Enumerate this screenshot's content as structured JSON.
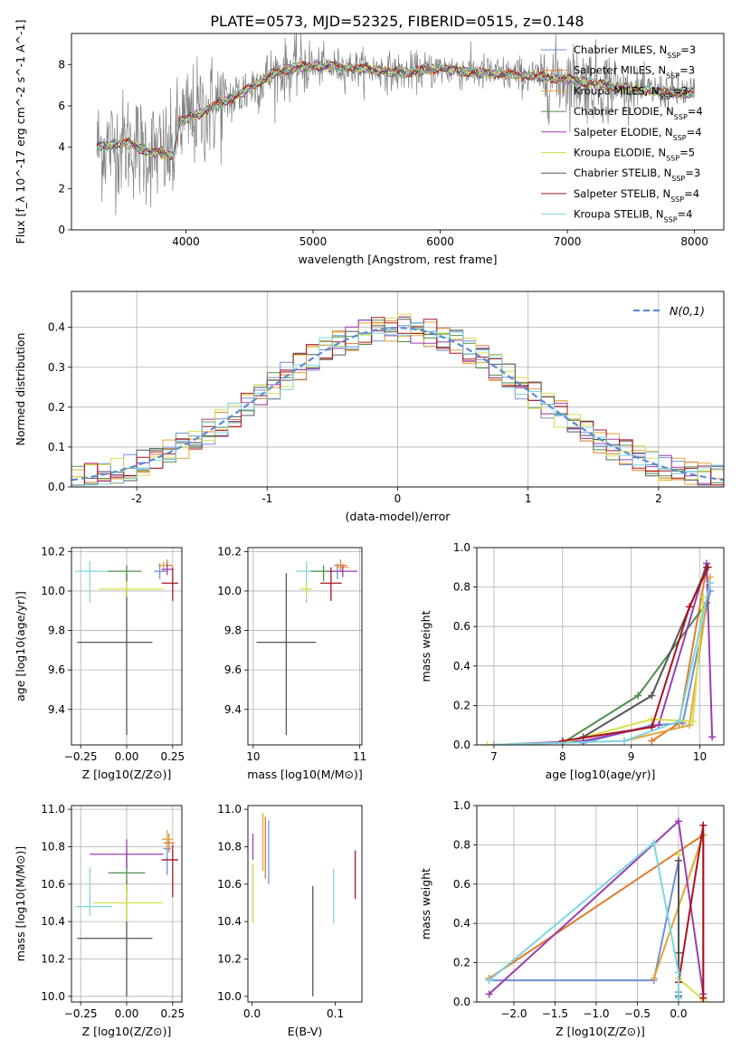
{
  "figure": {
    "title": "PLATE=0573, MJD=52325, FIBERID=0515, z=0.148"
  },
  "legend_series": [
    {
      "name": "Chabrier MILES",
      "nssp": "3",
      "color": "#6f8fd8"
    },
    {
      "name": "Salpeter MILES",
      "nssp": "3",
      "color": "#e07b2a"
    },
    {
      "name": "Kroupa MILES",
      "nssp": "3",
      "color": "#e3a43a"
    },
    {
      "name": "Chabrier ELODIE",
      "nssp": "4",
      "color": "#4f8f4f"
    },
    {
      "name": "Salpeter ELODIE",
      "nssp": "4",
      "color": "#9a3fb0"
    },
    {
      "name": "Kroupa ELODIE",
      "nssp": "5",
      "color": "#d8e04a"
    },
    {
      "name": "Chabrier STELIB",
      "nssp": "3",
      "color": "#555555"
    },
    {
      "name": "Salpeter STELIB",
      "nssp": "4",
      "color": "#a8141e"
    },
    {
      "name": "Kroupa STELIB",
      "nssp": "4",
      "color": "#7dd6e0"
    }
  ],
  "chart_data": [
    {
      "id": "spectrum",
      "type": "line",
      "xlabel": "wavelength [Angstrom, rest frame]",
      "ylabel": "Flux [f_λ 10^-17 erg cm^-2 s^-1 A^-1]",
      "xlim": [
        3100,
        8230
      ],
      "ylim": [
        0,
        9.5
      ],
      "xticks": [
        4000,
        5000,
        6000,
        7000,
        8000
      ],
      "yticks": [
        0,
        2,
        4,
        6,
        8
      ],
      "grid": false,
      "legend_placement": "right",
      "data_x_range": [
        3300,
        8000
      ],
      "data_color": "#808080",
      "continuum_points": [
        [
          3300,
          4.0
        ],
        [
          3550,
          4.2
        ],
        [
          3700,
          3.8
        ],
        [
          3900,
          3.6
        ],
        [
          3950,
          5.2
        ],
        [
          4100,
          5.6
        ],
        [
          4400,
          6.5
        ],
        [
          4700,
          7.6
        ],
        [
          4900,
          7.9
        ],
        [
          5100,
          7.9
        ],
        [
          5400,
          7.8
        ],
        [
          5700,
          7.6
        ],
        [
          6000,
          7.8
        ],
        [
          6300,
          7.6
        ],
        [
          6600,
          7.5
        ],
        [
          7000,
          7.3
        ],
        [
          7400,
          6.9
        ],
        [
          7700,
          6.7
        ],
        [
          8000,
          6.6
        ]
      ]
    },
    {
      "id": "residual-hist",
      "type": "histogram",
      "xlabel": "(data-model)/error",
      "ylabel": "Normed distribution",
      "xlim": [
        -2.5,
        2.5
      ],
      "ylim": [
        0,
        0.49
      ],
      "xticks": [
        -2,
        -1,
        0,
        1,
        2
      ],
      "yticks": [
        0,
        0.1,
        0.2,
        0.3,
        0.4
      ],
      "grid": true,
      "legend_placement": "top-right",
      "reference_curve": {
        "name": "N(0,1)",
        "color": "#5b8bd0",
        "style": "dashed"
      },
      "bins": 50
    },
    {
      "id": "z-age",
      "type": "scatter",
      "xlabel": "Z [log10(Z/Z⊙)]",
      "ylabel": "age [log10(age/yr)]",
      "xlim": [
        -0.3,
        0.3
      ],
      "ylim": [
        9.22,
        10.22
      ],
      "xticks": [
        -0.25,
        0.0,
        0.25
      ],
      "yticks": [
        9.4,
        9.6,
        9.8,
        10.0,
        10.2
      ],
      "grid": true,
      "points": [
        {
          "series": 6,
          "x": 0.0,
          "y": 9.74,
          "xerr": [
            0.27,
            0.14
          ],
          "yerr": [
            0.47,
            0.35
          ]
        },
        {
          "series": 8,
          "x": -0.2,
          "y": 10.1,
          "xerr": [
            0.08,
            0.12
          ],
          "yerr": [
            0.16,
            0.05
          ]
        },
        {
          "series": 3,
          "x": 0.0,
          "y": 10.1,
          "xerr": [
            0.1,
            0.08
          ],
          "yerr": [
            0.05,
            0.03
          ]
        },
        {
          "series": 5,
          "x": 0.0,
          "y": 10.01,
          "xerr": [
            0.15,
            0.2
          ],
          "yerr": [
            0.04,
            0.04
          ]
        },
        {
          "series": 0,
          "x": 0.18,
          "y": 10.1,
          "xerr": [
            0.03,
            0.04
          ],
          "yerr": [
            0.04,
            0.04
          ]
        },
        {
          "series": 1,
          "x": 0.22,
          "y": 10.13,
          "xerr": [
            0.03,
            0.03
          ],
          "yerr": [
            0.03,
            0.03
          ]
        },
        {
          "series": 2,
          "x": 0.2,
          "y": 10.13,
          "xerr": [
            0.03,
            0.03
          ],
          "yerr": [
            0.03,
            0.02
          ]
        },
        {
          "series": 4,
          "x": 0.22,
          "y": 10.11,
          "xerr": [
            0.03,
            0.03
          ],
          "yerr": [
            0.03,
            0.03
          ]
        },
        {
          "series": 7,
          "x": 0.25,
          "y": 10.04,
          "xerr": [
            0.06,
            0.03
          ],
          "yerr": [
            0.09,
            0.08
          ]
        }
      ]
    },
    {
      "id": "mass-age",
      "type": "scatter",
      "xlabel": "mass [log10(M/M⊙)]",
      "ylabel": "",
      "xlim": [
        9.95,
        11.02
      ],
      "ylim": [
        9.22,
        10.22
      ],
      "xticks": [
        10,
        11
      ],
      "yticks": [
        9.4,
        9.6,
        9.8,
        10.0,
        10.2
      ],
      "grid": true,
      "points": [
        {
          "series": 6,
          "x": 10.31,
          "y": 9.74,
          "xerr": [
            0.28,
            0.28
          ],
          "yerr": [
            0.47,
            0.35
          ]
        },
        {
          "series": 8,
          "x": 10.5,
          "y": 10.1,
          "xerr": [
            0.1,
            0.2
          ],
          "yerr": [
            0.16,
            0.05
          ]
        },
        {
          "series": 3,
          "x": 10.66,
          "y": 10.1,
          "xerr": [
            0.12,
            0.1
          ],
          "yerr": [
            0.05,
            0.03
          ]
        },
        {
          "series": 5,
          "x": 10.5,
          "y": 10.01,
          "xerr": [
            0.06,
            0.05
          ],
          "yerr": [
            0.04,
            0.04
          ]
        },
        {
          "series": 0,
          "x": 10.79,
          "y": 10.1,
          "xerr": [
            0.06,
            0.06
          ],
          "yerr": [
            0.04,
            0.04
          ]
        },
        {
          "series": 1,
          "x": 10.82,
          "y": 10.13,
          "xerr": [
            0.06,
            0.06
          ],
          "yerr": [
            0.03,
            0.03
          ]
        },
        {
          "series": 2,
          "x": 10.84,
          "y": 10.12,
          "xerr": [
            0.06,
            0.06
          ],
          "yerr": [
            0.03,
            0.02
          ]
        },
        {
          "series": 4,
          "x": 10.84,
          "y": 10.1,
          "xerr": [
            0.14,
            0.14
          ],
          "yerr": [
            0.03,
            0.03
          ]
        },
        {
          "series": 7,
          "x": 10.73,
          "y": 10.04,
          "xerr": [
            0.1,
            0.1
          ],
          "yerr": [
            0.09,
            0.08
          ]
        }
      ]
    },
    {
      "id": "age-weight",
      "type": "line",
      "xlabel": "age [log10(age/yr)]",
      "ylabel": "mass weight",
      "xlim": [
        6.75,
        10.35
      ],
      "ylim": [
        0,
        1.0
      ],
      "xticks": [
        7,
        8,
        9,
        10
      ],
      "yticks": [
        0.0,
        0.2,
        0.4,
        0.6,
        0.8,
        1.0
      ],
      "grid": true,
      "series": [
        {
          "series": 0,
          "points": [
            [
              8.3,
              0.01
            ],
            [
              9.3,
              0.1
            ],
            [
              9.75,
              0.11
            ],
            [
              10.15,
              0.78
            ]
          ]
        },
        {
          "series": 1,
          "points": [
            [
              9.3,
              0.02
            ],
            [
              9.7,
              0.11
            ],
            [
              10.1,
              0.9
            ]
          ]
        },
        {
          "series": 2,
          "points": [
            [
              8.9,
              0.02
            ],
            [
              9.85,
              0.1
            ],
            [
              10.15,
              0.85
            ]
          ]
        },
        {
          "series": 3,
          "points": [
            [
              8.0,
              0.01
            ],
            [
              9.1,
              0.25
            ],
            [
              10.1,
              0.72
            ]
          ]
        },
        {
          "series": 4,
          "points": [
            [
              7.0,
              0.0
            ],
            [
              8.3,
              0.02
            ],
            [
              9.4,
              0.1
            ],
            [
              10.1,
              0.92
            ],
            [
              10.18,
              0.04
            ]
          ]
        },
        {
          "series": 5,
          "points": [
            [
              6.9,
              0.0
            ],
            [
              8.0,
              0.01
            ],
            [
              9.3,
              0.13
            ],
            [
              9.9,
              0.12
            ],
            [
              10.05,
              0.75
            ]
          ]
        },
        {
          "series": 6,
          "points": [
            [
              8.3,
              0.04
            ],
            [
              9.3,
              0.25
            ],
            [
              10.1,
              0.9
            ]
          ]
        },
        {
          "series": 7,
          "points": [
            [
              8.0,
              0.02
            ],
            [
              9.3,
              0.09
            ],
            [
              9.85,
              0.7
            ],
            [
              10.12,
              0.9
            ]
          ]
        },
        {
          "series": 8,
          "points": [
            [
              7.0,
              0.0
            ],
            [
              8.9,
              0.02
            ],
            [
              9.7,
              0.12
            ],
            [
              10.15,
              0.82
            ]
          ]
        }
      ]
    },
    {
      "id": "z-mass",
      "type": "scatter",
      "xlabel": "Z [log10(Z/Z⊙)]",
      "ylabel": "mass [log10(M/M⊙)]",
      "xlim": [
        -0.3,
        0.3
      ],
      "ylim": [
        9.97,
        11.02
      ],
      "xticks": [
        -0.25,
        0.0,
        0.25
      ],
      "yticks": [
        10.0,
        10.2,
        10.4,
        10.6,
        10.8,
        11.0
      ],
      "grid": true,
      "points": [
        {
          "series": 6,
          "x": 0.0,
          "y": 10.31,
          "xerr": [
            0.27,
            0.14
          ],
          "yerr": [
            0.31,
            0.31
          ]
        },
        {
          "series": 8,
          "x": -0.2,
          "y": 10.48,
          "xerr": [
            0.08,
            0.12
          ],
          "yerr": [
            0.05,
            0.21
          ]
        },
        {
          "series": 3,
          "x": 0.0,
          "y": 10.66,
          "xerr": [
            0.1,
            0.1
          ],
          "yerr": [
            0.1,
            0.12
          ]
        },
        {
          "series": 5,
          "x": 0.0,
          "y": 10.5,
          "xerr": [
            0.18,
            0.2
          ],
          "yerr": [
            0.1,
            0.1
          ]
        },
        {
          "series": 0,
          "x": 0.22,
          "y": 10.79,
          "xerr": [
            0.02,
            0.02
          ],
          "yerr": [
            0.14,
            0.05
          ]
        },
        {
          "series": 1,
          "x": 0.23,
          "y": 10.82,
          "xerr": [
            0.03,
            0.03
          ],
          "yerr": [
            0.05,
            0.05
          ]
        },
        {
          "series": 2,
          "x": 0.22,
          "y": 10.84,
          "xerr": [
            0.03,
            0.03
          ],
          "yerr": [
            0.05,
            0.05
          ]
        },
        {
          "series": 4,
          "x": 0.0,
          "y": 10.76,
          "xerr": [
            0.2,
            0.2
          ],
          "yerr": [
            0.08,
            0.08
          ]
        },
        {
          "series": 7,
          "x": 0.25,
          "y": 10.73,
          "xerr": [
            0.06,
            0.03
          ],
          "yerr": [
            0.2,
            0.08
          ]
        }
      ]
    },
    {
      "id": "ebv-mass",
      "type": "scatter",
      "xlabel": "E(B-V)",
      "ylabel": "",
      "xlim": [
        -0.005,
        0.132
      ],
      "ylim": [
        9.97,
        11.02
      ],
      "xticks": [
        0.0,
        0.1
      ],
      "yticks": [
        10.0,
        10.2,
        10.4,
        10.6,
        10.8,
        11.0
      ],
      "grid": false,
      "points": [
        {
          "series": 6,
          "x": 0.073,
          "y": 10.31,
          "xerr": [
            0,
            0
          ],
          "yerr": [
            0.31,
            0.28
          ]
        },
        {
          "series": 8,
          "x": 0.098,
          "y": 10.52,
          "xerr": [
            0,
            0
          ],
          "yerr": [
            0.13,
            0.16
          ]
        },
        {
          "series": 3,
          "x": 0.001,
          "y": 10.55,
          "xerr": [
            0,
            0
          ],
          "yerr": [
            0.15,
            0.15
          ]
        },
        {
          "series": 5,
          "x": 0.001,
          "y": 10.55,
          "xerr": [
            0,
            0
          ],
          "yerr": [
            0.16,
            0.16
          ]
        },
        {
          "series": 0,
          "x": 0.02,
          "y": 10.77,
          "xerr": [
            0,
            0
          ],
          "yerr": [
            0.17,
            0.17
          ]
        },
        {
          "series": 1,
          "x": 0.016,
          "y": 10.8,
          "xerr": [
            0,
            0
          ],
          "yerr": [
            0.17,
            0.16
          ]
        },
        {
          "series": 2,
          "x": 0.013,
          "y": 10.82,
          "xerr": [
            0,
            0
          ],
          "yerr": [
            0.15,
            0.16
          ]
        },
        {
          "series": 4,
          "x": 0.001,
          "y": 10.8,
          "xerr": [
            0,
            0
          ],
          "yerr": [
            0.07,
            0.07
          ]
        },
        {
          "series": 7,
          "x": 0.124,
          "y": 10.65,
          "xerr": [
            0,
            0
          ],
          "yerr": [
            0.13,
            0.13
          ]
        }
      ]
    },
    {
      "id": "z-weight",
      "type": "line",
      "xlabel": "Z [log10(Z/Z⊙)]",
      "ylabel": "mass weight",
      "xlim": [
        -2.45,
        0.55
      ],
      "ylim": [
        0,
        1.0
      ],
      "xticks": [
        -2.0,
        -1.5,
        -1.0,
        -0.5,
        0.0
      ],
      "yticks": [
        0.0,
        0.2,
        0.4,
        0.6,
        0.8,
        1.0
      ],
      "grid": true,
      "series": [
        {
          "series": 0,
          "points": [
            [
              -2.3,
              0.11
            ],
            [
              -0.3,
              0.11
            ],
            [
              0.0,
              0.72
            ],
            [
              0.0,
              0.05
            ]
          ]
        },
        {
          "series": 1,
          "points": [
            [
              -2.3,
              0.12
            ],
            [
              0.3,
              0.85
            ],
            [
              0.3,
              0.02
            ]
          ]
        },
        {
          "series": 2,
          "points": [
            [
              -0.3,
              0.12
            ],
            [
              0.3,
              0.85
            ]
          ]
        },
        {
          "series": 3,
          "points": [
            [
              0.0,
              0.72
            ],
            [
              0.0,
              0.25
            ],
            [
              0.0,
              0.02
            ]
          ]
        },
        {
          "series": 4,
          "points": [
            [
              -2.3,
              0.04
            ],
            [
              0.0,
              0.92
            ],
            [
              0.3,
              0.04
            ]
          ]
        },
        {
          "series": 5,
          "points": [
            [
              0.0,
              0.75
            ],
            [
              0.0,
              0.12
            ],
            [
              0.3,
              0.01
            ]
          ]
        },
        {
          "series": 6,
          "points": [
            [
              0.0,
              0.72
            ],
            [
              0.0,
              0.25
            ],
            [
              0.0,
              0.03
            ]
          ]
        },
        {
          "series": 7,
          "points": [
            [
              0.0,
              0.1
            ],
            [
              0.3,
              0.9
            ],
            [
              0.3,
              0.02
            ]
          ]
        },
        {
          "series": 8,
          "points": [
            [
              -2.3,
              0.11
            ],
            [
              -0.3,
              0.81
            ],
            [
              0.0,
              0.15
            ],
            [
              0.0,
              0.02
            ]
          ]
        }
      ]
    }
  ]
}
